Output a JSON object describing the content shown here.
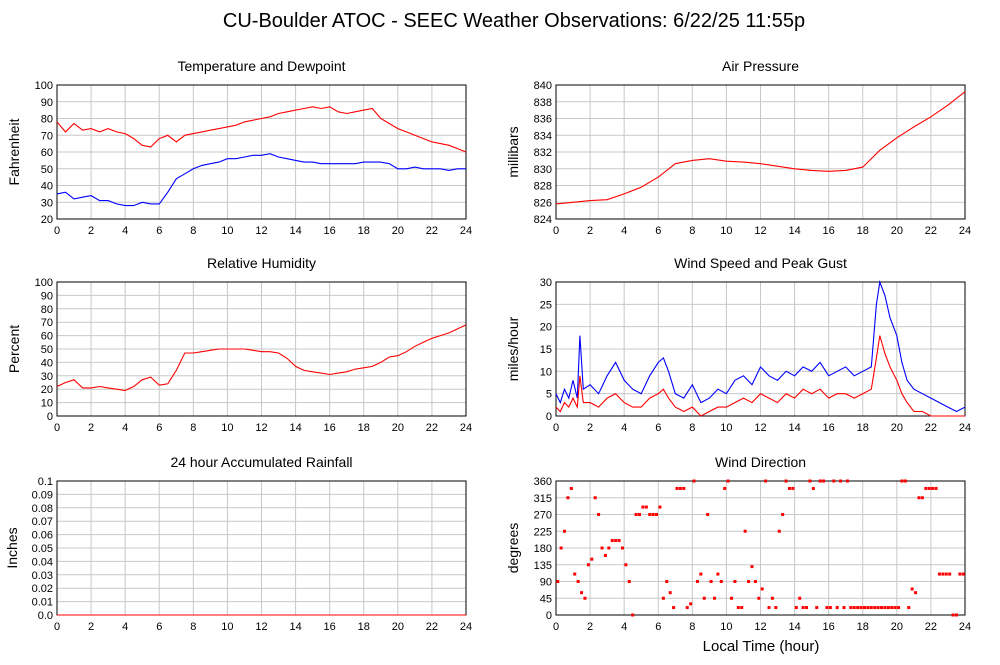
{
  "page": {
    "title": "CU-Boulder ATOC - SEEC Weather Observations: 6/22/25 11:55p",
    "shared_xlabel": "Local Time (hour)"
  },
  "chart_data": [
    {
      "id": "temp",
      "type": "line",
      "title": "Temperature and Dewpoint",
      "ylabel": "Fahrenheit",
      "xlabel": "",
      "xlim": [
        0,
        24
      ],
      "ylim": [
        20,
        100
      ],
      "xticks": [
        0,
        2,
        4,
        6,
        8,
        10,
        12,
        14,
        16,
        18,
        20,
        22,
        24
      ],
      "yticks": [
        20,
        30,
        40,
        50,
        60,
        70,
        80,
        90,
        100
      ],
      "grid": true,
      "series": [
        {
          "color": "#ff0000",
          "x": [
            0,
            0.5,
            1,
            1.5,
            2,
            2.5,
            3,
            3.5,
            4,
            4.5,
            5,
            5.5,
            6,
            6.5,
            7,
            7.5,
            8,
            8.5,
            9,
            9.5,
            10,
            10.5,
            11,
            11.5,
            12,
            12.5,
            13,
            13.5,
            14,
            14.5,
            15,
            15.5,
            16,
            16.5,
            17,
            17.5,
            18,
            18.5,
            19,
            19.5,
            20,
            20.5,
            21,
            21.5,
            22,
            22.5,
            23,
            23.5,
            24
          ],
          "y": [
            78,
            72,
            77,
            73,
            74,
            72,
            74,
            72,
            71,
            68,
            64,
            63,
            68,
            70,
            66,
            70,
            71,
            72,
            73,
            74,
            75,
            76,
            78,
            79,
            80,
            81,
            83,
            84,
            85,
            86,
            87,
            86,
            87,
            84,
            83,
            84,
            85,
            86,
            80,
            77,
            74,
            72,
            70,
            68,
            66,
            65,
            64,
            62,
            60
          ]
        },
        {
          "color": "#0000ff",
          "x": [
            0,
            0.5,
            1,
            1.5,
            2,
            2.5,
            3,
            3.5,
            4,
            4.5,
            5,
            5.5,
            6,
            6.5,
            7,
            7.5,
            8,
            8.5,
            9,
            9.5,
            10,
            10.5,
            11,
            11.5,
            12,
            12.5,
            13,
            13.5,
            14,
            14.5,
            15,
            15.5,
            16,
            16.5,
            17,
            17.5,
            18,
            18.5,
            19,
            19.5,
            20,
            20.5,
            21,
            21.5,
            22,
            22.5,
            23,
            23.5,
            24
          ],
          "y": [
            35,
            36,
            32,
            33,
            34,
            31,
            31,
            29,
            28,
            28,
            30,
            29,
            29,
            36,
            44,
            47,
            50,
            52,
            53,
            54,
            56,
            56,
            57,
            58,
            58,
            59,
            57,
            56,
            55,
            54,
            54,
            53,
            53,
            53,
            53,
            53,
            54,
            54,
            54,
            53,
            50,
            50,
            51,
            50,
            50,
            50,
            49,
            50,
            50
          ]
        }
      ]
    },
    {
      "id": "pressure",
      "type": "line",
      "title": "Air Pressure",
      "ylabel": "millibars",
      "xlabel": "",
      "xlim": [
        0,
        24
      ],
      "ylim": [
        824,
        840
      ],
      "xticks": [
        0,
        2,
        4,
        6,
        8,
        10,
        12,
        14,
        16,
        18,
        20,
        22,
        24
      ],
      "yticks": [
        824,
        826,
        828,
        830,
        832,
        834,
        836,
        838,
        840
      ],
      "grid": true,
      "series": [
        {
          "color": "#ff0000",
          "x": [
            0,
            1,
            2,
            3,
            4,
            5,
            6,
            6.5,
            7,
            8,
            9,
            10,
            11,
            12,
            13,
            14,
            15,
            16,
            17,
            18,
            19,
            20,
            21,
            22,
            23,
            24
          ],
          "y": [
            825.8,
            826.0,
            826.2,
            826.3,
            827.0,
            827.8,
            829.0,
            829.8,
            830.6,
            831.0,
            831.2,
            830.9,
            830.8,
            830.6,
            830.3,
            830.0,
            829.8,
            829.7,
            829.8,
            830.2,
            832.2,
            833.7,
            835.0,
            836.2,
            837.6,
            839.2
          ]
        }
      ]
    },
    {
      "id": "humidity",
      "type": "line",
      "title": "Relative Humidity",
      "ylabel": "Percent",
      "xlabel": "",
      "xlim": [
        0,
        24
      ],
      "ylim": [
        0,
        100
      ],
      "xticks": [
        0,
        2,
        4,
        6,
        8,
        10,
        12,
        14,
        16,
        18,
        20,
        22,
        24
      ],
      "yticks": [
        0,
        10,
        20,
        30,
        40,
        50,
        60,
        70,
        80,
        90,
        100
      ],
      "grid": true,
      "series": [
        {
          "color": "#ff0000",
          "x": [
            0,
            0.5,
            1,
            1.5,
            2,
            2.5,
            3,
            3.5,
            4,
            4.5,
            5,
            5.5,
            6,
            6.5,
            7,
            7.5,
            8,
            8.5,
            9,
            9.5,
            10,
            10.5,
            11,
            11.5,
            12,
            12.5,
            13,
            13.5,
            14,
            14.5,
            15,
            15.5,
            16,
            16.5,
            17,
            17.5,
            18,
            18.5,
            19,
            19.5,
            20,
            20.5,
            21,
            21.5,
            22,
            22.5,
            23,
            23.5,
            24
          ],
          "y": [
            22,
            25,
            27,
            21,
            21,
            22,
            21,
            20,
            19,
            22,
            27,
            29,
            23,
            24,
            34,
            47,
            47,
            48,
            49,
            50,
            50,
            50,
            50,
            49,
            48,
            48,
            47,
            43,
            37,
            34,
            33,
            32,
            31,
            32,
            33,
            35,
            36,
            37,
            40,
            44,
            45,
            48,
            52,
            55,
            58,
            60,
            62,
            65,
            68
          ]
        }
      ]
    },
    {
      "id": "wind",
      "type": "line",
      "title": "Wind Speed and Peak Gust",
      "ylabel": "miles/hour",
      "xlabel": "",
      "xlim": [
        0,
        24
      ],
      "ylim": [
        0,
        30
      ],
      "xticks": [
        0,
        2,
        4,
        6,
        8,
        10,
        12,
        14,
        16,
        18,
        20,
        22,
        24
      ],
      "yticks": [
        0,
        5,
        10,
        15,
        20,
        25,
        30
      ],
      "grid": true,
      "series": [
        {
          "color": "#0000ff",
          "x": [
            0,
            0.25,
            0.5,
            0.75,
            1,
            1.25,
            1.4,
            1.6,
            2,
            2.5,
            3,
            3.5,
            4,
            4.5,
            5,
            5.5,
            6,
            6.3,
            6.6,
            7,
            7.5,
            8,
            8.5,
            9,
            9.5,
            10,
            10.5,
            11,
            11.5,
            12,
            12.5,
            13,
            13.5,
            14,
            14.5,
            15,
            15.5,
            16,
            16.5,
            17,
            17.5,
            18,
            18.5,
            18.8,
            19,
            19.3,
            19.6,
            20,
            20.3,
            20.6,
            21,
            21.5,
            22,
            22.5,
            23,
            23.5,
            24
          ],
          "y": [
            5,
            3,
            6,
            4,
            8,
            4,
            18,
            6,
            7,
            5,
            9,
            12,
            8,
            6,
            5,
            9,
            12,
            13,
            10,
            5,
            4,
            7,
            3,
            4,
            6,
            5,
            8,
            9,
            7,
            11,
            9,
            8,
            10,
            9,
            11,
            10,
            12,
            9,
            10,
            11,
            9,
            10,
            11,
            25,
            30,
            27,
            22,
            18,
            12,
            8,
            6,
            5,
            4,
            3,
            2,
            1,
            2
          ]
        },
        {
          "color": "#ff0000",
          "x": [
            0,
            0.25,
            0.5,
            0.75,
            1,
            1.25,
            1.4,
            1.6,
            2,
            2.5,
            3,
            3.5,
            4,
            4.5,
            5,
            5.5,
            6,
            6.3,
            6.6,
            7,
            7.5,
            8,
            8.5,
            9,
            9.5,
            10,
            10.5,
            11,
            11.5,
            12,
            12.5,
            13,
            13.5,
            14,
            14.5,
            15,
            15.5,
            16,
            16.5,
            17,
            17.5,
            18,
            18.5,
            18.8,
            19,
            19.3,
            19.6,
            20,
            20.3,
            20.6,
            21,
            21.5,
            22,
            22.5,
            23,
            23.5,
            24
          ],
          "y": [
            2,
            1,
            3,
            2,
            4,
            2,
            9,
            3,
            3,
            2,
            4,
            5,
            3,
            2,
            2,
            4,
            5,
            6,
            4,
            2,
            1,
            2,
            0,
            1,
            2,
            2,
            3,
            4,
            3,
            5,
            4,
            3,
            5,
            4,
            6,
            5,
            6,
            4,
            5,
            5,
            4,
            5,
            6,
            13,
            18,
            14,
            11,
            8,
            5,
            3,
            1,
            1,
            0,
            0,
            0,
            0,
            0
          ]
        }
      ]
    },
    {
      "id": "rain",
      "type": "line",
      "title": "24 hour Accumulated Rainfall",
      "ylabel": "Inches",
      "xlabel": "",
      "xlim": [
        0,
        24
      ],
      "ylim": [
        0,
        0.1
      ],
      "xticks": [
        0,
        2,
        4,
        6,
        8,
        10,
        12,
        14,
        16,
        18,
        20,
        22,
        24
      ],
      "yticks": [
        0.0,
        0.01,
        0.02,
        0.03,
        0.04,
        0.05,
        0.06,
        0.07,
        0.08,
        0.09,
        0.1
      ],
      "ytick_labels": [
        "0.0",
        "0.01",
        "0.02",
        "0.03",
        "0.04",
        "0.05",
        "0.06",
        "0.07",
        "0.08",
        "0.09",
        "0.1"
      ],
      "grid": true,
      "series": [
        {
          "color": "#ff0000",
          "x": [
            0,
            24
          ],
          "y": [
            0,
            0
          ]
        }
      ]
    },
    {
      "id": "direction",
      "type": "scatter",
      "title": "Wind Direction",
      "ylabel": "degrees",
      "xlabel": "Local Time (hour)",
      "xlim": [
        0,
        24
      ],
      "ylim": [
        0,
        360
      ],
      "xticks": [
        0,
        2,
        4,
        6,
        8,
        10,
        12,
        14,
        16,
        18,
        20,
        22,
        24
      ],
      "yticks": [
        0,
        45,
        90,
        135,
        180,
        225,
        270,
        315,
        360
      ],
      "grid": true,
      "series": [
        {
          "color": "#ff0000",
          "x": [
            0.1,
            0.3,
            0.5,
            0.7,
            0.9,
            1.1,
            1.3,
            1.5,
            1.7,
            1.9,
            2.1,
            2.3,
            2.5,
            2.7,
            2.9,
            3.1,
            3.3,
            3.5,
            3.7,
            3.9,
            4.1,
            4.3,
            4.5,
            4.7,
            4.9,
            5.1,
            5.3,
            5.5,
            5.7,
            5.9,
            6.1,
            6.3,
            6.5,
            6.7,
            6.9,
            7.1,
            7.3,
            7.5,
            7.7,
            7.9,
            8.1,
            8.3,
            8.5,
            8.7,
            8.9,
            9.1,
            9.3,
            9.5,
            9.7,
            9.9,
            10.1,
            10.3,
            10.5,
            10.7,
            10.9,
            11.1,
            11.3,
            11.5,
            11.7,
            11.9,
            12.1,
            12.3,
            12.5,
            12.7,
            12.9,
            13.1,
            13.3,
            13.5,
            13.7,
            13.9,
            14.1,
            14.3,
            14.5,
            14.7,
            14.9,
            15.1,
            15.3,
            15.5,
            15.7,
            15.9,
            16.1,
            16.3,
            16.5,
            16.7,
            16.9,
            17.1,
            17.3,
            17.5,
            17.7,
            17.9,
            18.1,
            18.3,
            18.5,
            18.7,
            18.9,
            19.1,
            19.3,
            19.5,
            19.7,
            19.9,
            20.1,
            20.3,
            20.5,
            20.7,
            20.9,
            21.1,
            21.3,
            21.5,
            21.7,
            21.9,
            22.1,
            22.3,
            22.5,
            22.7,
            22.9,
            23.1,
            23.3,
            23.5,
            23.7,
            23.9
          ],
          "y": [
            90,
            180,
            225,
            315,
            340,
            110,
            90,
            60,
            45,
            135,
            150,
            315,
            270,
            180,
            160,
            180,
            200,
            200,
            200,
            180,
            135,
            90,
            0,
            270,
            270,
            290,
            290,
            270,
            270,
            270,
            290,
            45,
            90,
            60,
            20,
            340,
            340,
            340,
            20,
            30,
            360,
            90,
            110,
            45,
            270,
            90,
            45,
            110,
            90,
            340,
            360,
            45,
            90,
            20,
            20,
            225,
            90,
            130,
            90,
            45,
            70,
            360,
            20,
            45,
            20,
            225,
            270,
            360,
            340,
            340,
            20,
            45,
            20,
            20,
            360,
            340,
            20,
            360,
            360,
            20,
            20,
            360,
            20,
            360,
            20,
            360,
            20,
            20,
            20,
            20,
            20,
            20,
            20,
            20,
            20,
            20,
            20,
            20,
            20,
            20,
            20,
            360,
            360,
            20,
            70,
            60,
            315,
            315,
            340,
            340,
            340,
            340,
            110,
            110,
            110,
            110,
            0,
            0,
            110,
            110
          ]
        }
      ]
    }
  ]
}
